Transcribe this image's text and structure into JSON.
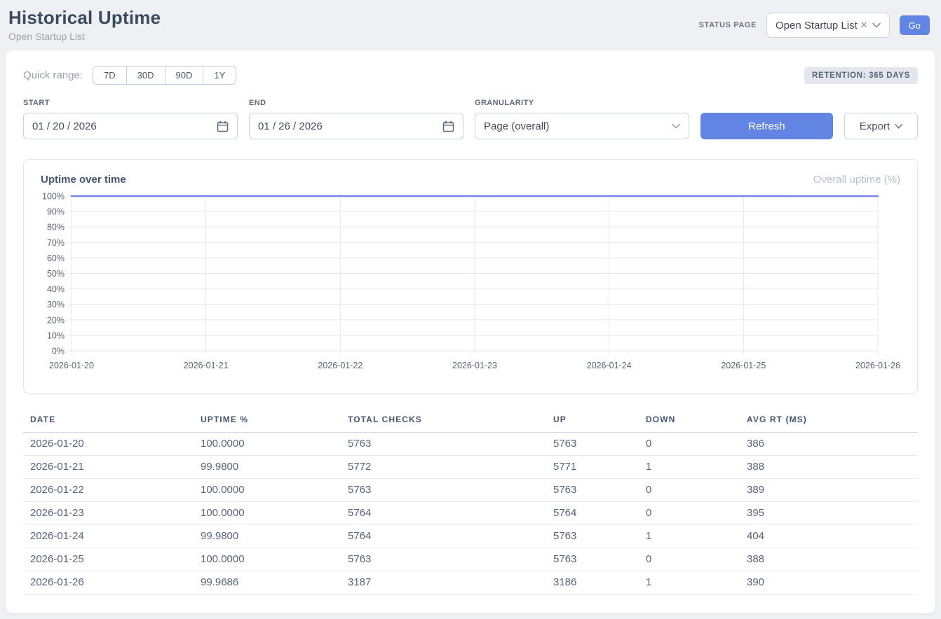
{
  "header": {
    "title": "Historical Uptime",
    "subtitle": "Open Startup List",
    "status_page_label": "STATUS PAGE",
    "status_page_value": "Open Startup List",
    "go_label": "Go"
  },
  "filters": {
    "quick_range_label": "Quick range:",
    "quick_ranges": [
      "7D",
      "30D",
      "90D",
      "1Y"
    ],
    "retention_badge": "RETENTION: 365 DAYS",
    "start_label": "START",
    "start_value": "01 / 20 / 2026",
    "end_label": "END",
    "end_value": "01 / 26 / 2026",
    "granularity_label": "GRANULARITY",
    "granularity_value": "Page (overall)",
    "refresh_label": "Refresh",
    "export_label": "Export"
  },
  "chart": {
    "title": "Uptime over time",
    "legend": "Overall uptime (%)"
  },
  "chart_data": {
    "type": "line",
    "title": "Uptime over time",
    "x": [
      "2026-01-20",
      "2026-01-21",
      "2026-01-22",
      "2026-01-23",
      "2026-01-24",
      "2026-01-25",
      "2026-01-26"
    ],
    "series": [
      {
        "name": "Overall uptime (%)",
        "values": [
          100.0,
          99.98,
          100.0,
          100.0,
          99.98,
          100.0,
          99.9686
        ]
      }
    ],
    "xlabel": "",
    "ylabel": "",
    "ylim": [
      0,
      100
    ],
    "y_tick_labels": [
      "0%",
      "10%",
      "20%",
      "30%",
      "40%",
      "50%",
      "60%",
      "70%",
      "80%",
      "90%",
      "100%"
    ],
    "grid": true,
    "legend_position": "top-right"
  },
  "table": {
    "columns": [
      "DATE",
      "UPTIME %",
      "TOTAL CHECKS",
      "UP",
      "DOWN",
      "AVG RT (MS)"
    ],
    "rows": [
      [
        "2026-01-20",
        "100.0000",
        "5763",
        "5763",
        "0",
        "386"
      ],
      [
        "2026-01-21",
        "99.9800",
        "5772",
        "5771",
        "1",
        "388"
      ],
      [
        "2026-01-22",
        "100.0000",
        "5763",
        "5763",
        "0",
        "389"
      ],
      [
        "2026-01-23",
        "100.0000",
        "5764",
        "5764",
        "0",
        "395"
      ],
      [
        "2026-01-24",
        "99.9800",
        "5764",
        "5763",
        "1",
        "404"
      ],
      [
        "2026-01-25",
        "100.0000",
        "5763",
        "5763",
        "0",
        "388"
      ],
      [
        "2026-01-26",
        "99.9686",
        "3187",
        "3186",
        "1",
        "390"
      ]
    ]
  },
  "colors": {
    "accent_blue": "#6285e4",
    "chart_line": "#7c83ee",
    "gridline": "#e5e8ec",
    "axis_text": "#5a6472"
  }
}
